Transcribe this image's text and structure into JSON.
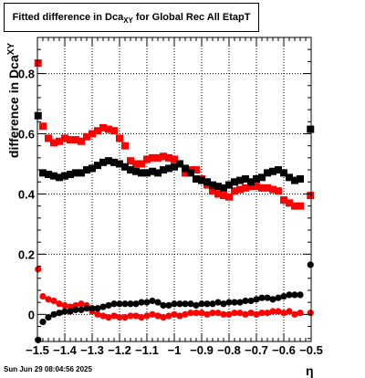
{
  "title": {
    "prefix": "Fitted difference in Dca",
    "subscript": "XY",
    "suffix": " for Global Rec All EtapT"
  },
  "timestamp": "Sun Jun 29 08:04:56 2025",
  "colors": {
    "red_series": "#ff0000",
    "black_series": "#000000",
    "grid": "#000000"
  },
  "chart_data": {
    "type": "scatter",
    "title": "Fitted difference in Dca_XY for Global Rec All EtapT",
    "xlabel": "η",
    "ylabel": "difference in Dca_XY",
    "xlim": [
      -1.5,
      -0.5
    ],
    "ylim": [
      -0.09,
      0.92
    ],
    "grid": true,
    "x_ticks": [
      -1.5,
      -1.4,
      -1.3,
      -1.2,
      -1.1,
      -1.0,
      -0.9,
      -0.8,
      -0.7,
      -0.6,
      -0.5
    ],
    "x_tick_labels": [
      "−1.5",
      "−1.4",
      "−1.3",
      "−1.2",
      "−1.1",
      "−1",
      "−0.9",
      "−0.8",
      "−0.7",
      "−0.6",
      "−0.5"
    ],
    "y_ticks": [
      0,
      0.2,
      0.4,
      0.6,
      0.8
    ],
    "y_tick_labels": [
      "0",
      "0.2",
      "0.4",
      "0.6",
      "0.8"
    ],
    "x": [
      -1.4975,
      -1.48,
      -1.46,
      -1.44,
      -1.42,
      -1.4,
      -1.38,
      -1.36,
      -1.34,
      -1.32,
      -1.3,
      -1.28,
      -1.26,
      -1.24,
      -1.22,
      -1.2,
      -1.18,
      -1.16,
      -1.14,
      -1.12,
      -1.1,
      -1.08,
      -1.06,
      -1.04,
      -1.02,
      -1.0,
      -0.98,
      -0.96,
      -0.94,
      -0.92,
      -0.9,
      -0.88,
      -0.86,
      -0.84,
      -0.82,
      -0.8,
      -0.78,
      -0.76,
      -0.74,
      -0.72,
      -0.7,
      -0.68,
      -0.66,
      -0.64,
      -0.62,
      -0.6,
      -0.58,
      -0.56,
      -0.54,
      -0.5025
    ],
    "series": [
      {
        "marker": "square",
        "color": "#ff0000",
        "values": [
          0.835,
          0.625,
          0.585,
          0.57,
          0.575,
          0.585,
          0.58,
          0.58,
          0.575,
          0.59,
          0.6,
          0.61,
          0.62,
          0.615,
          0.61,
          0.585,
          0.56,
          0.51,
          0.5,
          0.5,
          0.515,
          0.52,
          0.52,
          0.525,
          0.52,
          0.515,
          0.5,
          0.47,
          0.48,
          0.48,
          0.45,
          0.43,
          0.41,
          0.4,
          0.395,
          0.39,
          0.41,
          0.415,
          0.42,
          0.425,
          0.425,
          0.42,
          0.42,
          0.415,
          0.41,
          0.38,
          0.37,
          0.36,
          0.36,
          0.395
        ]
      },
      {
        "marker": "square",
        "color": "#000000",
        "values": [
          0.66,
          0.47,
          0.465,
          0.46,
          0.455,
          0.46,
          0.465,
          0.47,
          0.47,
          0.48,
          0.485,
          0.495,
          0.505,
          0.51,
          0.505,
          0.5,
          0.49,
          0.48,
          0.475,
          0.47,
          0.47,
          0.475,
          0.47,
          0.48,
          0.485,
          0.49,
          0.5,
          0.485,
          0.47,
          0.45,
          0.445,
          0.44,
          0.43,
          0.425,
          0.42,
          0.43,
          0.44,
          0.445,
          0.45,
          0.44,
          0.45,
          0.455,
          0.47,
          0.475,
          0.48,
          0.47,
          0.455,
          0.445,
          0.45,
          0.615
        ]
      },
      {
        "marker": "circle",
        "color": "#ff0000",
        "values": [
          0.15,
          0.06,
          0.05,
          0.045,
          0.035,
          0.03,
          0.025,
          0.03,
          0.035,
          0.03,
          0.01,
          0.0,
          -0.005,
          -0.01,
          -0.005,
          -0.01,
          -0.01,
          -0.005,
          -0.005,
          -0.01,
          -0.005,
          0.0,
          -0.005,
          -0.01,
          -0.005,
          0.0,
          -0.005,
          0.0,
          0.005,
          0.005,
          0.005,
          0.0,
          0.005,
          0.005,
          0.0,
          0.0,
          0.005,
          0.005,
          0.0,
          0.005,
          0.0,
          0.005,
          0.005,
          0.01,
          0.01,
          0.005,
          0.01,
          0.0,
          0.005,
          0.005
        ]
      },
      {
        "marker": "circle",
        "color": "#000000",
        "values": [
          -0.085,
          -0.025,
          -0.01,
          0.0,
          0.005,
          0.01,
          0.01,
          0.015,
          0.015,
          0.02,
          0.02,
          0.02,
          0.025,
          0.03,
          0.035,
          0.035,
          0.035,
          0.035,
          0.035,
          0.04,
          0.04,
          0.045,
          0.04,
          0.03,
          0.03,
          0.035,
          0.035,
          0.035,
          0.035,
          0.03,
          0.035,
          0.035,
          0.035,
          0.04,
          0.035,
          0.04,
          0.04,
          0.04,
          0.045,
          0.045,
          0.05,
          0.055,
          0.055,
          0.05,
          0.055,
          0.06,
          0.065,
          0.065,
          0.065,
          0.165
        ]
      }
    ]
  }
}
